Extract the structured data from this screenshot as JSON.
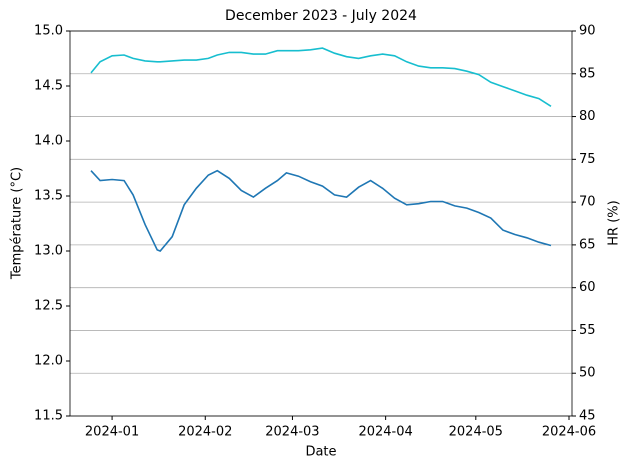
{
  "chart_data": {
    "type": "line",
    "title": "December 2023 - July 2024",
    "x_label": "Date",
    "y_label": "Température (°C)",
    "y2_label": "HR (%)",
    "x": [
      "2023-12-25",
      "2023-12-28",
      "2024-01-01",
      "2024-01-05",
      "2024-01-08",
      "2024-01-12",
      "2024-01-16",
      "2024-01-17",
      "2024-01-21",
      "2024-01-25",
      "2024-01-29",
      "2024-02-02",
      "2024-02-05",
      "2024-02-09",
      "2024-02-13",
      "2024-02-17",
      "2024-02-21",
      "2024-02-25",
      "2024-02-28",
      "2024-03-03",
      "2024-03-07",
      "2024-03-11",
      "2024-03-15",
      "2024-03-19",
      "2024-03-23",
      "2024-03-27",
      "2024-03-31",
      "2024-04-04",
      "2024-04-08",
      "2024-04-12",
      "2024-04-16",
      "2024-04-20",
      "2024-04-24",
      "2024-04-28",
      "2024-05-02",
      "2024-05-06",
      "2024-05-10",
      "2024-05-14",
      "2024-05-18",
      "2024-05-22",
      "2024-05-26"
    ],
    "series": [
      {
        "color": "#1f77b4",
        "axis": "y",
        "values": [
          13.73,
          13.64,
          13.65,
          13.64,
          13.51,
          13.24,
          13.01,
          13.0,
          13.13,
          13.42,
          13.57,
          13.69,
          13.73,
          13.66,
          13.55,
          13.49,
          13.57,
          13.64,
          13.71,
          13.68,
          13.63,
          13.59,
          13.51,
          13.49,
          13.58,
          13.64,
          13.57,
          13.48,
          13.42,
          13.43,
          13.45,
          13.45,
          13.41,
          13.39,
          13.35,
          13.3,
          13.19,
          13.15,
          13.12,
          13.08,
          13.05
        ]
      },
      {
        "color": "#17becf",
        "axis": "y2",
        "values": [
          85.1,
          86.4,
          87.1,
          87.2,
          86.8,
          86.5,
          86.4,
          86.4,
          86.5,
          86.6,
          86.6,
          86.8,
          87.2,
          87.5,
          87.5,
          87.3,
          87.3,
          87.7,
          87.7,
          87.7,
          87.8,
          88.0,
          87.4,
          87.0,
          86.8,
          87.1,
          87.3,
          87.1,
          86.4,
          85.9,
          85.7,
          85.7,
          85.6,
          85.3,
          84.9,
          84.0,
          83.5,
          83.0,
          82.5,
          82.1,
          81.2
        ]
      }
    ],
    "xlim": [
      "2023-12-18",
      "2024-06-02"
    ],
    "xticks": [
      {
        "value": "2024-01-01",
        "label": "2024-01"
      },
      {
        "value": "2024-02-01",
        "label": "2024-02"
      },
      {
        "value": "2024-03-01",
        "label": "2024-03"
      },
      {
        "value": "2024-04-01",
        "label": "2024-04"
      },
      {
        "value": "2024-05-01",
        "label": "2024-05"
      },
      {
        "value": "2024-06-01",
        "label": "2024-06"
      }
    ],
    "ylim": [
      11.5,
      15.0
    ],
    "yticks": [
      11.5,
      {
        "value": 12,
        "label": "12.0"
      },
      12.5,
      {
        "value": 13,
        "label": "13.0"
      },
      13.5,
      {
        "value": 14,
        "label": "14.0"
      },
      14.5,
      {
        "value": 15,
        "label": "15.0"
      }
    ],
    "y2lim": [
      45,
      90
    ],
    "y2ticks": [
      45,
      50,
      55,
      60,
      65,
      70,
      75,
      80,
      85,
      90
    ],
    "grid": "y2",
    "y_color": "#1f77b4",
    "y2_color": "#17becf"
  }
}
